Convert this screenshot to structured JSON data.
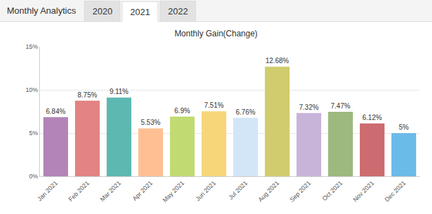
{
  "page": {
    "header": "Monthly Analytics",
    "tabs": [
      "2020",
      "2021",
      "2022"
    ],
    "selected": "2021"
  },
  "chart_data": {
    "type": "bar",
    "title": "Monthly Gain(Change)",
    "categories": [
      "Jan 2021",
      "Feb 2021",
      "Mar 2021",
      "Apr 2021",
      "May 2021",
      "Jun 2021",
      "Jul 2021",
      "Aug 2021",
      "Sep 2021",
      "Oct 2021",
      "Nov 2021",
      "Dec 2021"
    ],
    "values": [
      6.84,
      8.75,
      9.11,
      5.53,
      6.9,
      7.51,
      6.76,
      12.68,
      7.32,
      7.47,
      6.12,
      5
    ],
    "value_labels": [
      "6.84%",
      "8.75%",
      "9.11%",
      "5.53%",
      "6.9%",
      "7.51%",
      "6.76%",
      "12.68%",
      "7.32%",
      "7.47%",
      "6.12%",
      "5%"
    ],
    "colors": [
      "#b284b8",
      "#e38383",
      "#5db8b2",
      "#ffbf93",
      "#c2da72",
      "#f7d67a",
      "#d2e6f8",
      "#d1cc6e",
      "#c8b4d8",
      "#9db97f",
      "#cc6c70",
      "#6bbbe8"
    ],
    "ylim": [
      0,
      15
    ],
    "yticks": [
      {
        "value": 0,
        "label": "0%"
      },
      {
        "value": 5,
        "label": "5%"
      },
      {
        "value": 10,
        "label": "10%"
      },
      {
        "value": 15,
        "label": "15%"
      }
    ],
    "grid": true,
    "data_labels": true
  }
}
